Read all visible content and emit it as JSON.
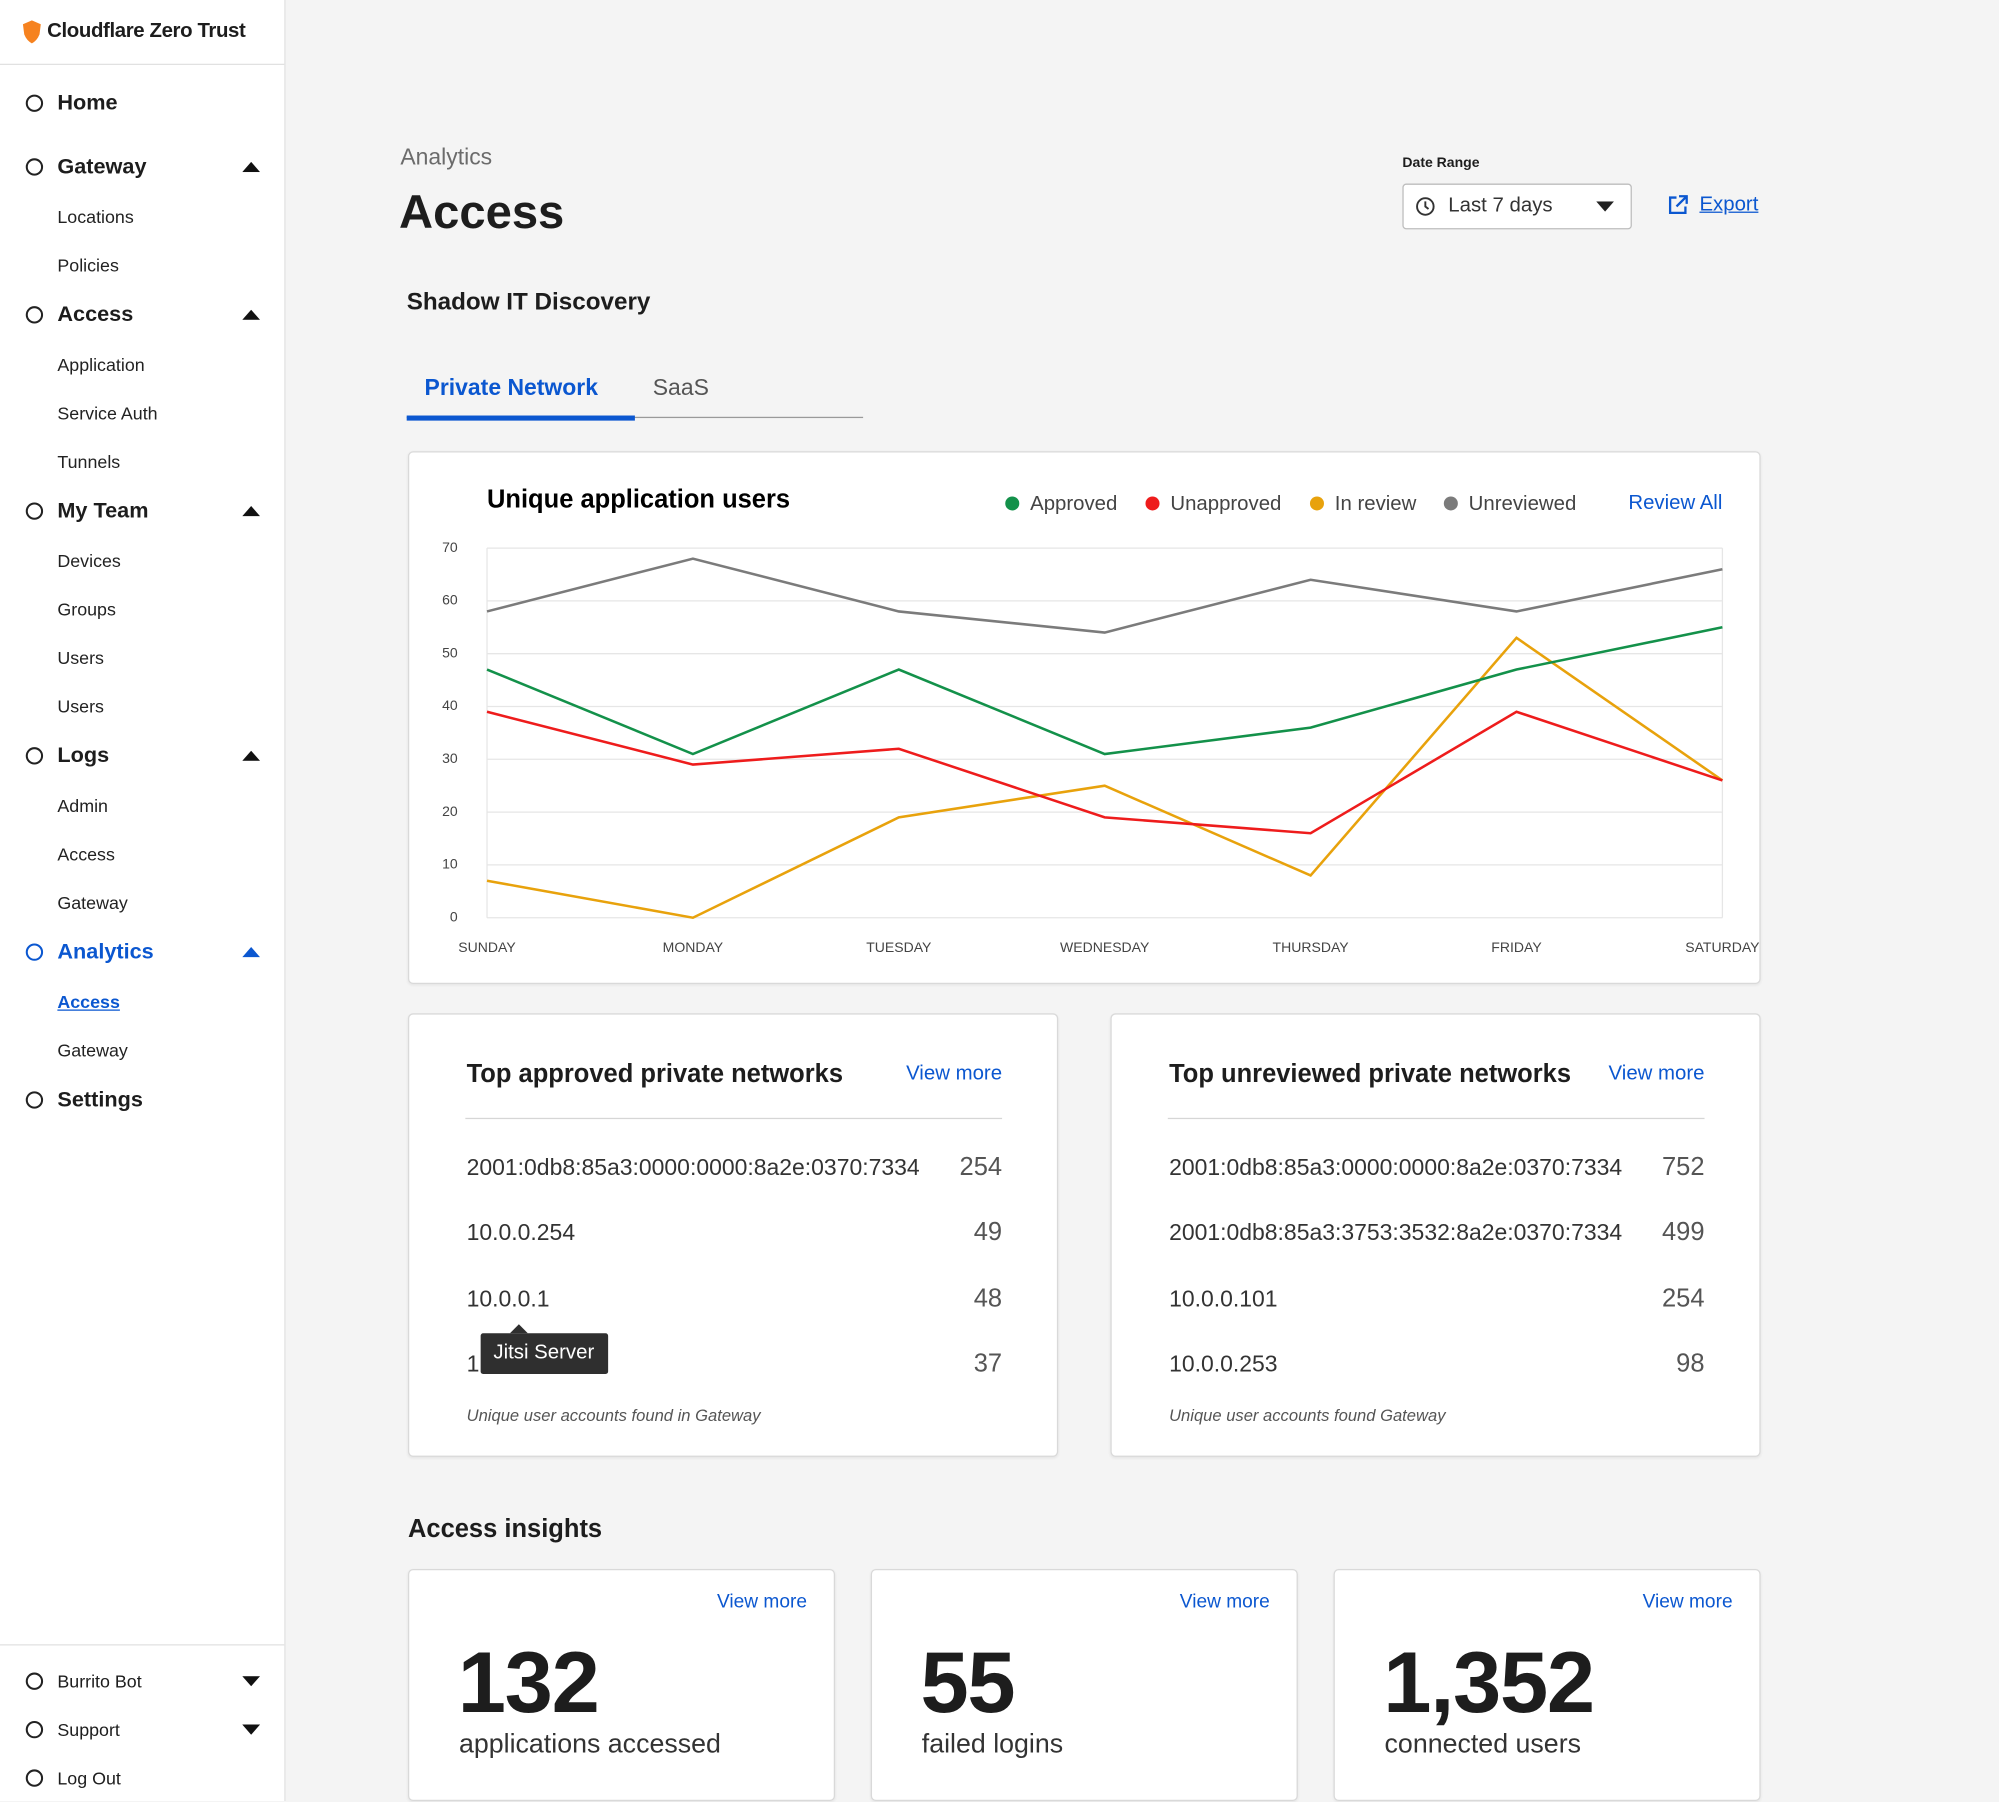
{
  "sidebar": {
    "brand": "Cloudflare Zero Trust",
    "sections": [
      {
        "label": "Home",
        "items": []
      },
      {
        "label": "Gateway",
        "items": [
          "Locations",
          "Policies"
        ]
      },
      {
        "label": "Access",
        "items": [
          "Application",
          "Service Auth",
          "Tunnels"
        ]
      },
      {
        "label": "My Team",
        "items": [
          "Devices",
          "Groups",
          "Users",
          "Users"
        ]
      },
      {
        "label": "Logs",
        "items": [
          "Admin",
          "Access",
          "Gateway"
        ]
      },
      {
        "label": "Analytics",
        "items": [
          "Access",
          "Gateway"
        ]
      },
      {
        "label": "Settings",
        "items": []
      }
    ],
    "footer": [
      "Burrito Bot",
      "Support",
      "Log Out"
    ]
  },
  "header": {
    "breadcrumb": "Analytics",
    "title": "Access",
    "date_range_label": "Date Range",
    "date_range_value": "Last 7 days",
    "export": "Export"
  },
  "section_title": "Shadow IT Discovery",
  "tabs": [
    "Private Network",
    "SaaS"
  ],
  "chart_data": {
    "type": "line",
    "title": "Unique application users",
    "action": "Review All",
    "categories": [
      "SUNDAY",
      "MONDAY",
      "TUESDAY",
      "WEDNESDAY",
      "THURSDAY",
      "FRIDAY",
      "SATURDAY"
    ],
    "series": [
      {
        "name": "Approved",
        "color": "#13914a",
        "values": [
          47,
          31,
          47,
          31,
          36,
          47,
          55
        ]
      },
      {
        "name": "Unapproved",
        "color": "#ee1c1c",
        "values": [
          39,
          29,
          32,
          19,
          16,
          39,
          26
        ]
      },
      {
        "name": "In review",
        "color": "#e8a20c",
        "values": [
          7,
          0,
          19,
          25,
          8,
          53,
          26
        ]
      },
      {
        "name": "Unreviewed",
        "color": "#7b7b7b",
        "values": [
          58,
          68,
          58,
          54,
          64,
          58,
          66
        ]
      }
    ],
    "ylim": [
      0,
      70
    ],
    "yticks": [
      0,
      10,
      20,
      30,
      40,
      50,
      60,
      70
    ],
    "grid": true
  },
  "tables": [
    {
      "title": "Top approved private networks",
      "link": "View more",
      "rows": [
        [
          "2001:0db8:85a3:0000:0000:8a2e:0370:7334",
          254
        ],
        [
          "10.0.0.254",
          49
        ],
        [
          "10.0.0.1",
          48
        ],
        [
          "1",
          37
        ]
      ],
      "footnote": "Unique user accounts found in Gateway",
      "tooltip": "Jitsi Server"
    },
    {
      "title": "Top unreviewed private networks",
      "link": "View more",
      "rows": [
        [
          "2001:0db8:85a3:0000:0000:8a2e:0370:7334",
          752
        ],
        [
          "2001:0db8:85a3:3753:3532:8a2e:0370:7334",
          499
        ],
        [
          "10.0.0.101",
          254
        ],
        [
          "10.0.0.253",
          98
        ]
      ],
      "footnote": "Unique user accounts found  Gateway"
    }
  ],
  "insights": {
    "title": "Access insights",
    "cards": [
      {
        "link": "View more",
        "value": "132",
        "label": "applications accessed"
      },
      {
        "link": "View more",
        "value": "55",
        "label": "failed logins"
      },
      {
        "link": "View more",
        "value": "1,352",
        "label": "connected users"
      }
    ]
  }
}
